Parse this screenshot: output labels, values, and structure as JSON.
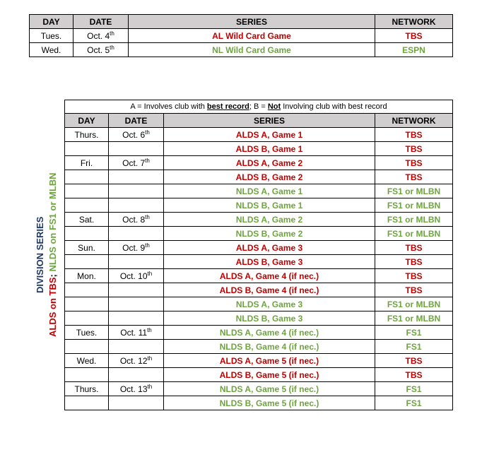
{
  "colors": {
    "header_bg": "#d0cece",
    "red": "#c00000",
    "green": "#6ea43f",
    "navy": "#203864",
    "border": "#000000",
    "background": "#ffffff"
  },
  "headers": {
    "day": "DAY",
    "date": "DATE",
    "series": "SERIES",
    "network": "NETWORK"
  },
  "wildcard": {
    "rows": [
      {
        "day": "Tues.",
        "date_main": "Oct. 4",
        "date_sup": "th",
        "series": "AL Wild Card Game",
        "series_class": "red",
        "network": "TBS",
        "network_class": "red"
      },
      {
        "day": "Wed.",
        "date_main": "Oct. 5",
        "date_sup": "th",
        "series": "NL Wild Card Game",
        "series_class": "green",
        "network": "ESPN",
        "network_class": "green"
      }
    ]
  },
  "sidelabel": {
    "line1": "DIVISION SERIES",
    "line2": "ALDS on TBS",
    "sep": "; ",
    "line3": "NLDS on FS1 or MLBN"
  },
  "legend": {
    "a_pre": "A = Involves club with ",
    "a_bold_ul": "best record",
    "sep": "; B = ",
    "b_bold_ul": "Not",
    "b_tail": " Involving club with best record"
  },
  "division": {
    "rows": [
      {
        "day": "Thurs.",
        "date_main": "Oct. 6",
        "date_sup": "th",
        "series": "ALDS A, Game 1",
        "series_class": "red",
        "network": "TBS",
        "network_class": "red"
      },
      {
        "day": "",
        "date_main": "",
        "date_sup": "",
        "series": "ALDS B, Game 1",
        "series_class": "red",
        "network": "TBS",
        "network_class": "red"
      },
      {
        "day": "Fri.",
        "date_main": "Oct. 7",
        "date_sup": "th",
        "series": "ALDS A, Game 2",
        "series_class": "red",
        "network": "TBS",
        "network_class": "red"
      },
      {
        "day": "",
        "date_main": "",
        "date_sup": "",
        "series": "ALDS B, Game 2",
        "series_class": "red",
        "network": "TBS",
        "network_class": "red"
      },
      {
        "day": "",
        "date_main": "",
        "date_sup": "",
        "series": "NLDS A, Game 1",
        "series_class": "green",
        "network": "FS1 or MLBN",
        "network_class": "green"
      },
      {
        "day": "",
        "date_main": "",
        "date_sup": "",
        "series": "NLDS B, Game 1",
        "series_class": "green",
        "network": "FS1 or MLBN",
        "network_class": "green"
      },
      {
        "day": "Sat.",
        "date_main": "Oct. 8",
        "date_sup": "th",
        "series": "NLDS A, Game 2",
        "series_class": "green",
        "network": "FS1 or MLBN",
        "network_class": "green"
      },
      {
        "day": "",
        "date_main": "",
        "date_sup": "",
        "series": "NLDS B, Game 2",
        "series_class": "green",
        "network": "FS1 or MLBN",
        "network_class": "green"
      },
      {
        "day": "Sun.",
        "date_main": "Oct. 9",
        "date_sup": "th",
        "series": "ALDS A, Game 3",
        "series_class": "red",
        "network": "TBS",
        "network_class": "red"
      },
      {
        "day": "",
        "date_main": "",
        "date_sup": "",
        "series": "ALDS B, Game 3",
        "series_class": "red",
        "network": "TBS",
        "network_class": "red"
      },
      {
        "day": "Mon.",
        "date_main": "Oct. 10",
        "date_sup": "th",
        "series": "ALDS A, Game 4 (if nec.)",
        "series_class": "red",
        "network": "TBS",
        "network_class": "red"
      },
      {
        "day": "",
        "date_main": "",
        "date_sup": "",
        "series": "ALDS B, Game 4 (if nec.)",
        "series_class": "red",
        "network": "TBS",
        "network_class": "red"
      },
      {
        "day": "",
        "date_main": "",
        "date_sup": "",
        "series": "NLDS A, Game 3",
        "series_class": "green",
        "network": "FS1 or MLBN",
        "network_class": "green"
      },
      {
        "day": "",
        "date_main": "",
        "date_sup": "",
        "series": "NLDS B, Game 3",
        "series_class": "green",
        "network": "FS1 or MLBN",
        "network_class": "green"
      },
      {
        "day": "Tues.",
        "date_main": "Oct. 11",
        "date_sup": "th",
        "series": "NLDS A, Game 4 (if nec.)",
        "series_class": "green",
        "network": "FS1",
        "network_class": "green"
      },
      {
        "day": "",
        "date_main": "",
        "date_sup": "",
        "series": "NLDS B, Game 4 (if nec.)",
        "series_class": "green",
        "network": "FS1",
        "network_class": "green"
      },
      {
        "day": "Wed.",
        "date_main": "Oct. 12",
        "date_sup": "th",
        "series": "ALDS A, Game 5 (if nec.)",
        "series_class": "red",
        "network": "TBS",
        "network_class": "red"
      },
      {
        "day": "",
        "date_main": "",
        "date_sup": "",
        "series": "ALDS B, Game 5 (if nec.)",
        "series_class": "red",
        "network": "TBS",
        "network_class": "red"
      },
      {
        "day": "Thurs.",
        "date_main": "Oct. 13",
        "date_sup": "th",
        "series": "NLDS A, Game 5 (if nec.)",
        "series_class": "green",
        "network": "FS1",
        "network_class": "green"
      },
      {
        "day": "",
        "date_main": "",
        "date_sup": "",
        "series": "NLDS B, Game 5 (if nec.)",
        "series_class": "green",
        "network": "FS1",
        "network_class": "green"
      }
    ]
  }
}
